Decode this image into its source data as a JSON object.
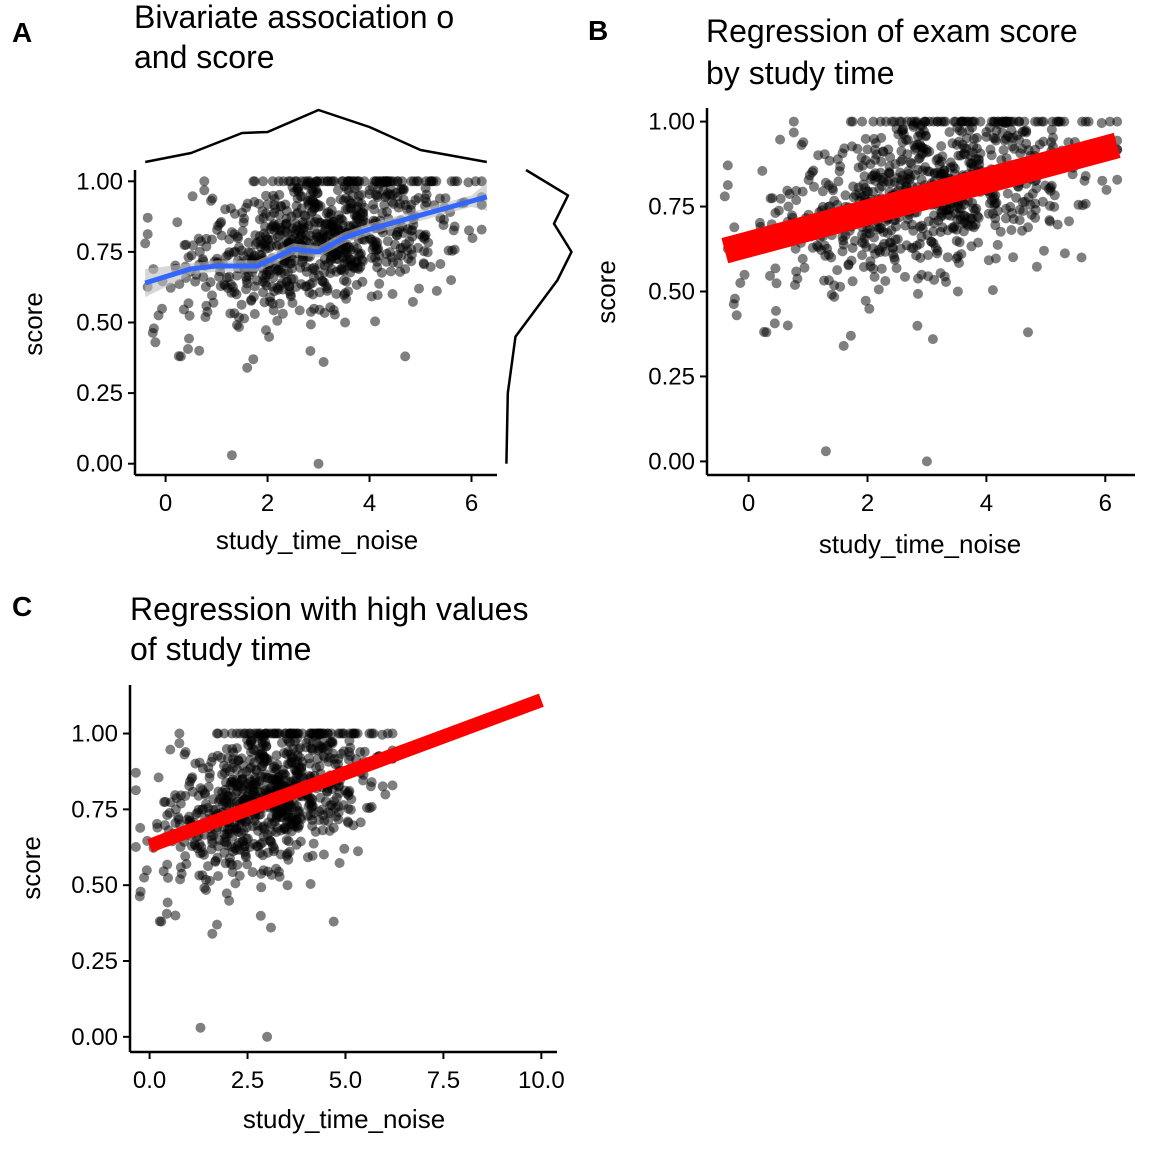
{
  "figure": {
    "panels": [
      {
        "tag": "A",
        "title_lines": [
          "Bivariate association o",
          "and score"
        ]
      },
      {
        "tag": "B",
        "title_lines": [
          "Regression of exam score",
          "by study time"
        ]
      },
      {
        "tag": "C",
        "title_lines": [
          "Regression with high values",
          "of study time"
        ]
      }
    ]
  },
  "chart_data": [
    {
      "type": "scatter",
      "panel": "A",
      "title": "Bivariate association of study time and score",
      "xlabel": "study_time_noise",
      "ylabel": "score",
      "xlim": [
        -0.6,
        6.5
      ],
      "ylim": [
        -0.04,
        1.04
      ],
      "xticks": [
        0,
        2,
        4,
        6
      ],
      "yticks": [
        "0.00",
        "0.25",
        "0.50",
        "0.75",
        "1.00"
      ],
      "point_color": "#000000",
      "notable_points": [
        {
          "x": 1.3,
          "y": 0.03
        },
        {
          "x": 3.0,
          "y": 0.0
        },
        {
          "x": -0.4,
          "y": 0.78
        },
        {
          "x": -0.2,
          "y": 0.43
        },
        {
          "x": 0.3,
          "y": 0.38
        },
        {
          "x": 1.6,
          "y": 0.34
        },
        {
          "x": 3.1,
          "y": 0.36
        },
        {
          "x": 4.7,
          "y": 0.38
        },
        {
          "x": 5.6,
          "y": 0.65
        }
      ],
      "smooth": {
        "color": "#3366FF",
        "ci_color": "#bdbdbd",
        "x": [
          -0.4,
          0.5,
          1.0,
          1.8,
          2.5,
          3.0,
          3.5,
          4.0,
          5.0,
          6.0,
          6.3
        ],
        "y": [
          0.64,
          0.69,
          0.7,
          0.7,
          0.76,
          0.75,
          0.8,
          0.83,
          0.88,
          0.93,
          0.945
        ]
      },
      "marginal_x_density": {
        "x": [
          -0.4,
          0.5,
          1.5,
          2.0,
          3.0,
          4.0,
          5.0,
          6.3
        ],
        "density": [
          0.03,
          0.12,
          0.32,
          0.33,
          0.55,
          0.38,
          0.15,
          0.03
        ]
      },
      "marginal_y_density": {
        "y": [
          0.0,
          0.25,
          0.45,
          0.55,
          0.65,
          0.75,
          0.85,
          0.95,
          1.04
        ],
        "density": [
          0.02,
          0.04,
          0.15,
          0.45,
          0.75,
          0.95,
          0.7,
          0.9,
          0.3
        ]
      }
    },
    {
      "type": "scatter",
      "panel": "B",
      "title": "Regression of exam score by study time",
      "xlabel": "study_time_noise",
      "ylabel": "score",
      "xlim": [
        -0.7,
        6.5
      ],
      "ylim": [
        -0.04,
        1.04
      ],
      "xticks": [
        0,
        2,
        4,
        6
      ],
      "yticks": [
        "0.00",
        "0.25",
        "0.50",
        "0.75",
        "1.00"
      ],
      "point_color": "#000000",
      "regression": {
        "color": "#ff0000",
        "x": [
          -0.4,
          6.2
        ],
        "y": [
          0.62,
          0.93
        ]
      },
      "notable_points": [
        {
          "x": 1.3,
          "y": 0.03
        },
        {
          "x": 3.0,
          "y": 0.0
        },
        {
          "x": -0.4,
          "y": 0.78
        },
        {
          "x": -0.2,
          "y": 0.43
        },
        {
          "x": 0.3,
          "y": 0.38
        },
        {
          "x": 1.6,
          "y": 0.34
        },
        {
          "x": 3.1,
          "y": 0.36
        },
        {
          "x": 4.7,
          "y": 0.38
        },
        {
          "x": 5.6,
          "y": 0.6
        }
      ]
    },
    {
      "type": "scatter",
      "panel": "C",
      "title": "Regression with high values of study time",
      "xlabel": "study_time_noise",
      "ylabel": "score",
      "xlim": [
        -0.5,
        10.4
      ],
      "ylim": [
        -0.05,
        1.16
      ],
      "xticks": [
        "0.0",
        "2.5",
        "5.0",
        "7.5",
        "10.0"
      ],
      "yticks": [
        "0.00",
        "0.25",
        "0.50",
        "0.75",
        "1.00"
      ],
      "point_color": "#000000",
      "regression": {
        "color": "#ff0000",
        "x": [
          0.0,
          10.0
        ],
        "y": [
          0.63,
          1.11
        ]
      },
      "notable_points": [
        {
          "x": 1.3,
          "y": 0.03
        },
        {
          "x": 3.0,
          "y": 0.0
        },
        {
          "x": 0.3,
          "y": 0.38
        },
        {
          "x": 1.6,
          "y": 0.34
        },
        {
          "x": 3.1,
          "y": 0.36
        },
        {
          "x": 4.7,
          "y": 0.38
        }
      ]
    }
  ]
}
